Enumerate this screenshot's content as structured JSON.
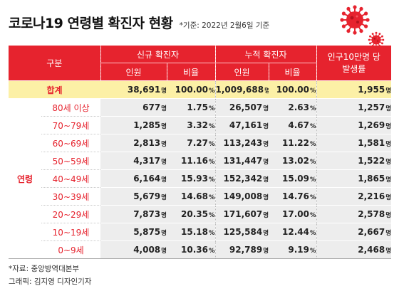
{
  "header": {
    "title": "코로나19 연령별 확진자 현황",
    "subtitle": "*기준: 2022년 2월6일 기준"
  },
  "colors": {
    "accent": "#e6232e",
    "highlight": "#fcf0a6",
    "row_bg": "#ededed"
  },
  "icons": [
    "virus-icon"
  ],
  "table": {
    "header": {
      "category": "구분",
      "new_cases": "신규 확진자",
      "cumulative_cases": "누적 확진자",
      "incidence_rate_line1": "인구10만명 당",
      "incidence_rate_line2": "발생률",
      "count": "인원",
      "ratio": "비율"
    },
    "units": {
      "person": "명",
      "percent": "%"
    },
    "total": {
      "label": "합계",
      "new_count": "38,691",
      "new_ratio": "100.00",
      "cum_count": "1,009,688",
      "cum_ratio": "100.00",
      "rate": "1,955"
    },
    "group_label": "연령",
    "rows": [
      {
        "age": "80세 이상",
        "new_count": "677",
        "new_ratio": "1.75",
        "cum_count": "26,507",
        "cum_ratio": "2.63",
        "rate": "1,257"
      },
      {
        "age": "70~79세",
        "new_count": "1,285",
        "new_ratio": "3.32",
        "cum_count": "47,161",
        "cum_ratio": "4.67",
        "rate": "1,269"
      },
      {
        "age": "60~69세",
        "new_count": "2,813",
        "new_ratio": "7.27",
        "cum_count": "113,243",
        "cum_ratio": "11.22",
        "rate": "1,581"
      },
      {
        "age": "50~59세",
        "new_count": "4,317",
        "new_ratio": "11.16",
        "cum_count": "131,447",
        "cum_ratio": "13.02",
        "rate": "1,522"
      },
      {
        "age": "40~49세",
        "new_count": "6,164",
        "new_ratio": "15.93",
        "cum_count": "152,342",
        "cum_ratio": "15.09",
        "rate": "1,865"
      },
      {
        "age": "30~39세",
        "new_count": "5,679",
        "new_ratio": "14.68",
        "cum_count": "149,008",
        "cum_ratio": "14.76",
        "rate": "2,216"
      },
      {
        "age": "20~29세",
        "new_count": "7,873",
        "new_ratio": "20.35",
        "cum_count": "171,607",
        "cum_ratio": "17.00",
        "rate": "2,578"
      },
      {
        "age": "10~19세",
        "new_count": "5,875",
        "new_ratio": "15.18",
        "cum_count": "125,584",
        "cum_ratio": "12.44",
        "rate": "2,667"
      },
      {
        "age": "0~9세",
        "new_count": "4,008",
        "new_ratio": "10.36",
        "cum_count": "92,789",
        "cum_ratio": "9.19",
        "rate": "2,468"
      }
    ]
  },
  "footer": {
    "source": "*자료: 중앙방역대본부",
    "credit": "그래픽: 김지영 디자인기자"
  }
}
